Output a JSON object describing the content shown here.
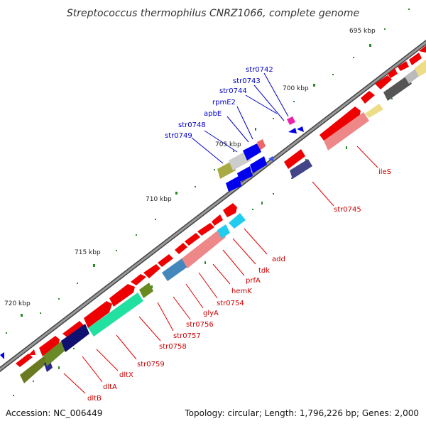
{
  "title": "Streptococcus thermophilus CNRZ1066, complete genome",
  "footer": {
    "accession": "Accession: NC_006449",
    "topology": "Topology: circular; Length: 1,796,226 bp; Genes: 2,000"
  },
  "scale_labels": [
    "695 kbp",
    "700 kbp",
    "705 kbp",
    "710 kbp",
    "715 kbp",
    "720 kbp"
  ],
  "genes_blue_labels": [
    "str0742",
    "str0743",
    "str0744",
    "rpmE2",
    "apbE",
    "str0748",
    "str0749"
  ],
  "genes_red_labels": [
    "ileS",
    "str0745",
    "add",
    "tdk",
    "prfA",
    "hemK",
    "str0754",
    "glyA",
    "str0756",
    "str0757",
    "str0758",
    "str0759",
    "dltX",
    "dltA",
    "dltB"
  ],
  "colors": {
    "forward_gene": "#ff0000",
    "blue_label": "#0000cc",
    "red_label": "#cc0000",
    "backbone": "#888888",
    "tick": "#2a8a2a"
  }
}
